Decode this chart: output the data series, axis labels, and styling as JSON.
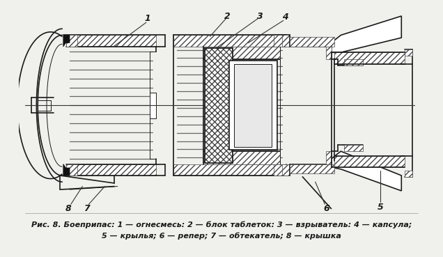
{
  "bg_color": "#f0f0ec",
  "line_color": "#1a1a1a",
  "caption_line1": "Рис. 8. Боеприпас: 1 — огнесмесь: 2 — блок таблеток: 3 — взрыватель: 4 — капсула;",
  "caption_line2": "5 — крылья; 6 — репер; 7 — обтекатель; 8 — крышка",
  "caption_fontsize": 8.0,
  "figsize": [
    6.36,
    3.69
  ],
  "dpi": 100
}
